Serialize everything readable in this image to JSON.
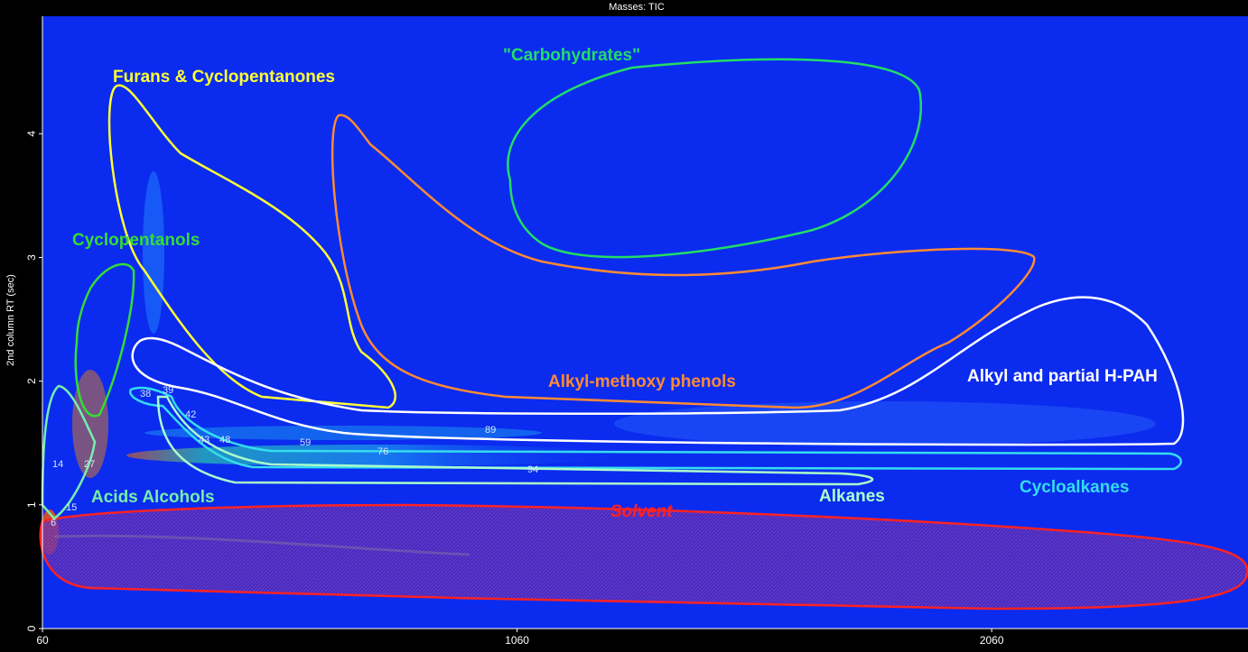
{
  "chart_data": {
    "type": "contour",
    "title": "Masses: TIC",
    "y_label": "2nd column RT (sec)",
    "xlim": [
      60,
      2600
    ],
    "ylim": [
      0,
      4.95
    ],
    "xticks": [
      60,
      1060,
      2060
    ],
    "yticks": [
      0,
      1,
      2,
      3,
      4
    ],
    "regions": [
      {
        "label": "Furans & Cyclopentanones",
        "color": "#ffff33"
      },
      {
        "label": "\"Carbohydrates\"",
        "color": "#22dd66"
      },
      {
        "label": "Cyclopentanols",
        "color": "#33dd33"
      },
      {
        "label": "Alkyl-methoxy phenols",
        "color": "#ff8a33"
      },
      {
        "label": "Alkyl and partial H-PAH",
        "color": "#ffffff"
      },
      {
        "label": "Acids Alcohols",
        "color": "#77eeaa"
      },
      {
        "label": "Alkanes",
        "color": "#aaffcc"
      },
      {
        "label": "Cycloalkanes",
        "color": "#33ddee"
      },
      {
        "label": "Solvent",
        "color": "#ff2222"
      }
    ],
    "peak_labels": [
      "14",
      "27",
      "15",
      "6",
      "38",
      "39",
      "42",
      "43",
      "48",
      "59",
      "76",
      "89",
      "94"
    ]
  }
}
